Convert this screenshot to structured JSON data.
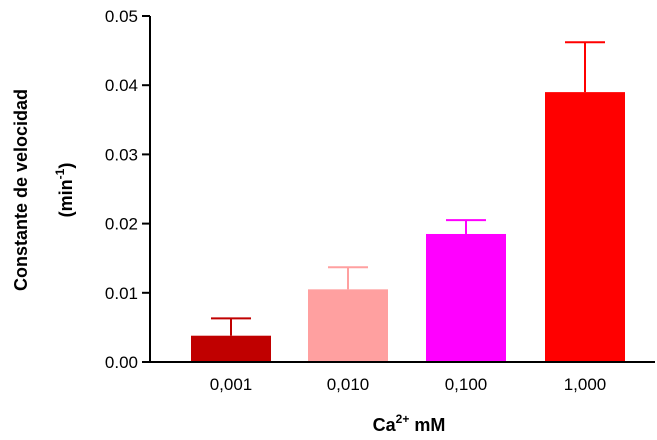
{
  "chart_data": {
    "type": "bar",
    "categories": [
      "0,001",
      "0,010",
      "0,100",
      "1,000"
    ],
    "values": [
      0.0038,
      0.0105,
      0.0185,
      0.039
    ],
    "error_upper": [
      0.0063,
      0.0137,
      0.0205,
      0.0462
    ],
    "bar_colors": [
      "#c00000",
      "#ffa0a0",
      "#ff00ff",
      "#ff0000"
    ],
    "y_ticks": [
      "0.00",
      "0.01",
      "0.02",
      "0.03",
      "0.04",
      "0.05"
    ],
    "ylim": [
      0,
      0.05
    ],
    "xlabel": {
      "base": "Ca",
      "sup": "2+",
      "rest": " mM"
    },
    "ylabel": {
      "line1": "Constante de velocidad",
      "line2_pre": "(min",
      "line2_sup": "-1",
      "line2_post": ")"
    },
    "grid": false,
    "legend": "none"
  }
}
